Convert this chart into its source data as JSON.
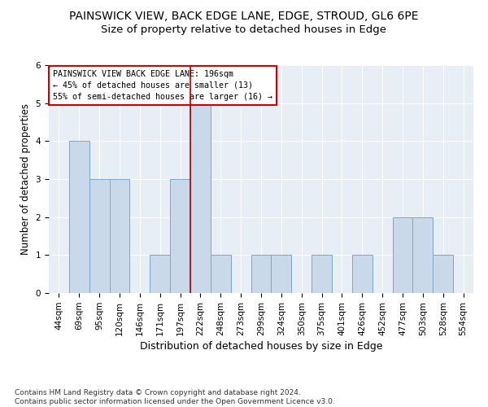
{
  "title": "PAINSWICK VIEW, BACK EDGE LANE, EDGE, STROUD, GL6 6PE",
  "subtitle": "Size of property relative to detached houses in Edge",
  "xlabel": "Distribution of detached houses by size in Edge",
  "ylabel": "Number of detached properties",
  "categories": [
    "44sqm",
    "69sqm",
    "95sqm",
    "120sqm",
    "146sqm",
    "171sqm",
    "197sqm",
    "222sqm",
    "248sqm",
    "273sqm",
    "299sqm",
    "324sqm",
    "350sqm",
    "375sqm",
    "401sqm",
    "426sqm",
    "452sqm",
    "477sqm",
    "503sqm",
    "528sqm",
    "554sqm"
  ],
  "values": [
    0,
    4,
    3,
    3,
    0,
    1,
    3,
    5,
    1,
    0,
    1,
    1,
    0,
    1,
    0,
    1,
    0,
    2,
    2,
    1,
    0
  ],
  "bar_color": "#c9d9ea",
  "bar_edge_color": "#7ba7c9",
  "vline_x": 6.5,
  "vline_color": "#aa0000",
  "annotation_lines": [
    "PAINSWICK VIEW BACK EDGE LANE: 196sqm",
    "← 45% of detached houses are smaller (13)",
    "55% of semi-detached houses are larger (16) →"
  ],
  "annotation_box_color": "#ffffff",
  "annotation_box_edge_color": "#cc0000",
  "ylim": [
    0,
    6
  ],
  "yticks": [
    0,
    1,
    2,
    3,
    4,
    5,
    6
  ],
  "footnote": "Contains HM Land Registry data © Crown copyright and database right 2024.\nContains public sector information licensed under the Open Government Licence v3.0.",
  "bg_color": "#e8eef5",
  "title_fontsize": 10,
  "subtitle_fontsize": 9.5,
  "tick_fontsize": 7.5,
  "ylabel_fontsize": 8.5,
  "xlabel_fontsize": 9,
  "footnote_fontsize": 6.5
}
